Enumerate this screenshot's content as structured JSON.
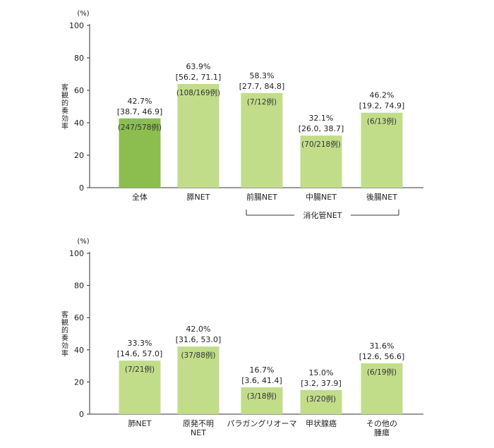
{
  "chart_data": [
    {
      "type": "bar",
      "unit_label": "(%)",
      "ylabel": "客観的奏効率",
      "ylim": [
        0,
        100
      ],
      "yticks": [
        0,
        20,
        40,
        60,
        80,
        100
      ],
      "categories": [
        [
          "全体"
        ],
        [
          "膵NET"
        ],
        [
          "前腸NET"
        ],
        [
          "中腸NET"
        ],
        [
          "後腸NET"
        ]
      ],
      "values": [
        42.7,
        63.9,
        58.3,
        32.1,
        46.2
      ],
      "value_labels": [
        "42.7%",
        "63.9%",
        "58.3%",
        "32.1%",
        "46.2%"
      ],
      "ci_labels": [
        "[38.7, 46.9]",
        "[56.2, 71.1]",
        "[27.7, 84.8]",
        "[26.0, 38.7]",
        "[19.2, 74.9]"
      ],
      "count_labels": [
        "(247/578例)",
        "(108/169例)",
        "(7/12例)",
        "(70/218例)",
        "(6/13例)"
      ],
      "bar_colors": [
        "#8cbe4f",
        "#c2dd8a",
        "#c2dd8a",
        "#c2dd8a",
        "#c2dd8a"
      ],
      "group_bracket": {
        "label": "消化管NET",
        "from_index": 2,
        "to_index": 4
      }
    },
    {
      "type": "bar",
      "unit_label": "(%)",
      "ylabel": "客観的奏効率",
      "ylim": [
        0,
        100
      ],
      "yticks": [
        0,
        20,
        40,
        60,
        80,
        100
      ],
      "categories": [
        [
          "肺NET"
        ],
        [
          "原発不明",
          "NET"
        ],
        [
          "パラガングリオーマ"
        ],
        [
          "甲状腺癌"
        ],
        [
          "その他の",
          "腫瘍"
        ]
      ],
      "values": [
        33.3,
        42.0,
        16.7,
        15.0,
        31.6
      ],
      "value_labels": [
        "33.3%",
        "42.0%",
        "16.7%",
        "15.0%",
        "31.6%"
      ],
      "ci_labels": [
        "[14.6, 57.0]",
        "[31.6, 53.0]",
        "[3.6, 41.4]",
        "[3.2, 37.9]",
        "[12.6, 56.6]"
      ],
      "count_labels": [
        "(7/21例)",
        "(37/88例)",
        "(3/18例)",
        "(3/20例)",
        "(6/19例)"
      ],
      "bar_colors": [
        "#c2dd8a",
        "#c2dd8a",
        "#c2dd8a",
        "#c2dd8a",
        "#c2dd8a"
      ]
    }
  ]
}
